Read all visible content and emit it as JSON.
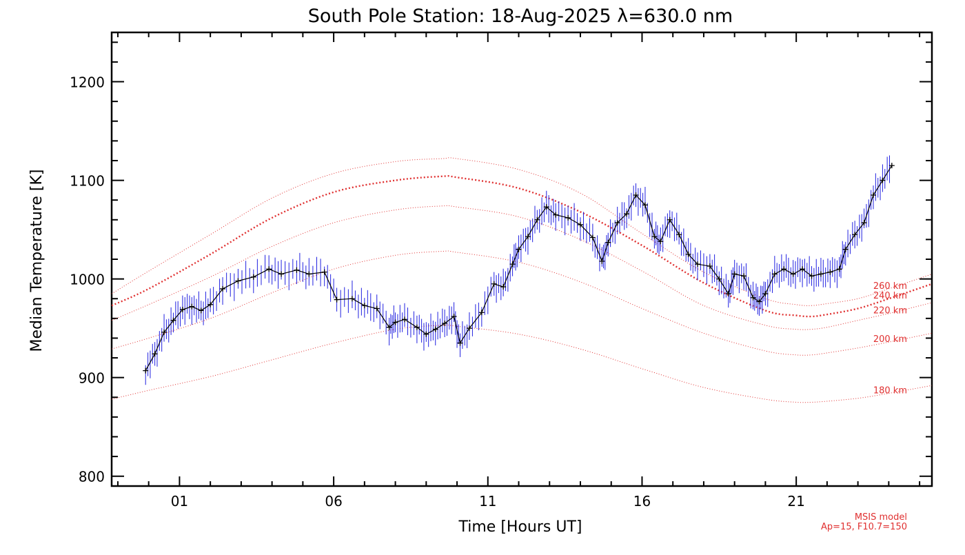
{
  "chart_data": {
    "type": "line",
    "title": "South Pole Station: 18-Aug-2025 λ=630.0 nm",
    "xlabel": "Time [Hours UT]",
    "ylabel": "Median Temperature [K]",
    "xlim": [
      -1.2,
      25.4
    ],
    "ylim": [
      790,
      1250
    ],
    "x_ticks": [
      1,
      6,
      11,
      16,
      21
    ],
    "x_tick_labels": [
      "01",
      "06",
      "11",
      "16",
      "21"
    ],
    "y_ticks": [
      800,
      900,
      1000,
      1100,
      1200
    ],
    "y_tick_labels": [
      "800",
      "900",
      "1000",
      "1100",
      "1200"
    ],
    "colors": {
      "data_line": "#000000",
      "error_bars": "#2020e0",
      "model_lines": "#e03030"
    },
    "series": [
      {
        "error": 10,
        "x": [
          -0.1,
          0.2,
          0.5,
          0.8,
          1.1,
          1.4,
          1.7,
          2.0,
          2.4,
          2.9,
          3.4,
          3.9,
          4.3,
          4.8,
          5.2,
          5.7,
          6.1,
          6.6,
          7.0,
          7.4,
          7.8,
          8.0,
          8.3,
          8.7,
          9.0,
          9.3,
          9.6,
          9.9,
          10.1,
          10.4,
          10.8,
          11.2,
          11.5,
          11.8,
          12.0,
          12.3,
          12.6,
          12.9,
          13.2,
          13.6,
          14.0,
          14.4,
          14.7,
          14.9,
          15.2,
          15.5,
          15.8,
          16.1,
          16.4,
          16.6,
          16.9,
          17.2,
          17.5,
          17.8,
          18.2,
          18.5,
          18.8,
          19.0,
          19.3,
          19.6,
          19.8,
          20.0,
          20.3,
          20.6,
          20.9,
          21.2,
          21.5,
          21.8,
          22.1,
          22.4,
          22.6,
          22.9,
          23.2,
          23.5,
          23.8,
          24.1
        ],
        "y": [
          907,
          924,
          946,
          958,
          969,
          972,
          968,
          974,
          990,
          998,
          1002,
          1010,
          1005,
          1009,
          1005,
          1007,
          979,
          980,
          973,
          970,
          951,
          956,
          959,
          951,
          944,
          949,
          955,
          962,
          935,
          950,
          966,
          995,
          992,
          1015,
          1030,
          1043,
          1060,
          1073,
          1065,
          1062,
          1055,
          1042,
          1018,
          1037,
          1057,
          1066,
          1085,
          1075,
          1043,
          1038,
          1060,
          1045,
          1025,
          1015,
          1013,
          1000,
          985,
          1005,
          1003,
          981,
          977,
          985,
          1005,
          1010,
          1005,
          1010,
          1003,
          1005,
          1007,
          1010,
          1030,
          1045,
          1057,
          1085,
          1100,
          1115
        ]
      }
    ],
    "model_curves": [
      {
        "name": "260 km",
        "x": [
          -1.2,
          0,
          2,
          4,
          6,
          8,
          9.5,
          10,
          12,
          14,
          16,
          18,
          20,
          21,
          21.5,
          22,
          23,
          24,
          25.4
        ],
        "y": [
          985,
          1008,
          1045,
          1082,
          1107,
          1119,
          1122,
          1122,
          1111,
          1087,
          1046,
          1007,
          980,
          974,
          973,
          975,
          980,
          990,
          1005
        ]
      },
      {
        "name": "240 km",
        "x": [
          -1.2,
          0,
          2,
          4,
          6,
          8,
          9.5,
          10,
          12,
          14,
          16,
          18,
          20,
          21,
          21.5,
          22,
          23,
          24,
          25.4
        ],
        "y": [
          973,
          990,
          1025,
          1062,
          1088,
          1100,
          1104,
          1103,
          1092,
          1068,
          1034,
          996,
          968,
          963,
          962,
          964,
          970,
          980,
          995
        ]
      },
      {
        "name": "220 km",
        "x": [
          -1.2,
          0,
          2,
          4,
          6,
          8,
          9.5,
          10,
          12,
          14,
          16,
          18,
          20,
          21,
          21.5,
          22,
          23,
          24,
          25.4
        ],
        "y": [
          958,
          974,
          1002,
          1033,
          1057,
          1070,
          1074,
          1073,
          1063,
          1040,
          1008,
          973,
          953,
          949,
          949,
          951,
          958,
          965,
          976
        ]
      },
      {
        "name": "200 km",
        "x": [
          -1.2,
          0,
          2,
          4,
          6,
          8,
          9.5,
          10,
          12,
          14,
          16,
          18,
          20,
          21,
          21.5,
          22,
          23,
          24,
          25.4
        ],
        "y": [
          929,
          940,
          960,
          986,
          1010,
          1024,
          1028,
          1027,
          1017,
          997,
          970,
          945,
          927,
          923,
          923,
          925,
          930,
          936,
          945
        ]
      },
      {
        "name": "180 km",
        "x": [
          -1.2,
          0,
          2,
          4,
          6,
          8,
          9.5,
          10,
          12,
          14,
          16,
          18,
          20,
          21,
          21.5,
          22,
          23,
          24,
          25.4
        ],
        "y": [
          878,
          887,
          901,
          918,
          935,
          949,
          953,
          952,
          944,
          929,
          909,
          890,
          878,
          875,
          875,
          876,
          879,
          884,
          892
        ]
      }
    ],
    "model_note": [
      "MSIS model",
      "Ap=15, F10.7=150"
    ]
  }
}
